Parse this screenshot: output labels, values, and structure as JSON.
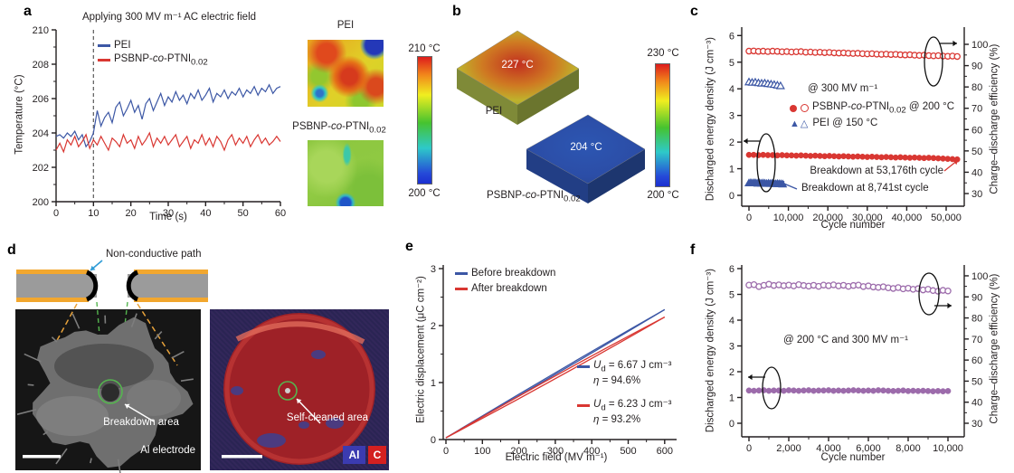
{
  "panel_labels": {
    "a": "a",
    "b": "b",
    "c": "c",
    "d": "d",
    "e": "e",
    "f": "f"
  },
  "colors": {
    "blue": "#3c57a5",
    "red": "#d93732",
    "purple": "#9c6bab",
    "purple_dark": "#7a4f8c",
    "green_annot": "#55b54f",
    "orange_electrode": "#f2a72e",
    "gray_polymer": "#9b9b9b",
    "arrow_blue": "#2e9bd6",
    "axis": "#231f20"
  },
  "panel_a": {
    "title": "Applying 300 MV m⁻¹ AC electric field",
    "xlabel": "Time (s)",
    "ylabel": "Temperature (°C)",
    "legend": [
      {
        "label": "PEI"
      },
      {
        "label_html": "PSBNP-<i>co</i>-PTNI<sub>0.02</sub>"
      }
    ],
    "thermal": {
      "pei_label": "PEI",
      "psbnp_label_html": "PSBNP-<i>co</i>-PTNI<sub>0.02</sub>",
      "colorbar_top": "210 °C",
      "colorbar_bottom": "200 °C"
    }
  },
  "panel_b": {
    "pei_temp": "227 °C",
    "psbnp_temp": "204 °C",
    "pei_label": "PEI",
    "psbnp_label_html": "PSBNP-<i>co</i>-PTNI<sub>0.02</sub>",
    "colorbar_top": "230 °C",
    "colorbar_bottom": "200 °C"
  },
  "panel_c_text": {
    "condition": "@ 300 MV m⁻¹",
    "legend": [
      {
        "label_html": "PSBNP-<i>co</i>-PTNI<sub>0.02</sub> @ 200 °C"
      },
      {
        "label": "PEI @ 150 °C"
      }
    ],
    "annotation_red": "Breakdown at 53,176th cycle",
    "annotation_blue": "Breakdown at 8,741st cycle"
  },
  "panel_d": {
    "non_conductive": "Non-conductive path",
    "breakdown": "Breakdown area",
    "al_electrode": "Al electrode",
    "self_cleaned": "Self-cleaned area",
    "badge_al": "Al",
    "badge_c": "C"
  },
  "panel_e_text": {
    "legend": [
      {
        "label": "Before breakdown"
      },
      {
        "label": "After breakdown"
      }
    ],
    "ud_before_html": "<i>U</i><sub>d</sub> = 6.67 J cm⁻³",
    "eta_before_html": "<i>η</i> = 94.6%",
    "ud_after_html": "<i>U</i><sub>d</sub> = 6.23 J cm⁻³",
    "eta_after_html": "<i>η</i> = 93.2%"
  },
  "panel_f_text": {
    "condition": "@ 200 °C and 300 MV m⁻¹"
  },
  "chart_data": [
    {
      "panel": "a",
      "type": "line",
      "title": "Applying 300 MV m⁻¹ AC electric field",
      "xlabel": "Time (s)",
      "ylabel": "Temperature (°C)",
      "xlim": [
        0,
        60
      ],
      "ylim": [
        200,
        210
      ],
      "xticks": [
        [
          0,
          "0"
        ],
        [
          10,
          "10"
        ],
        [
          20,
          "20"
        ],
        [
          30,
          "30"
        ],
        [
          40,
          "40"
        ],
        [
          50,
          "50"
        ],
        [
          60,
          "60"
        ]
      ],
      "yticks": [
        [
          200,
          "200"
        ],
        [
          202,
          "202"
        ],
        [
          204,
          "204"
        ],
        [
          206,
          "206"
        ],
        [
          208,
          "208"
        ],
        [
          210,
          "210"
        ]
      ],
      "field_on_time_s": 10,
      "series": [
        {
          "name": "PEI",
          "color": "#3c57a5",
          "x_start": 0,
          "x_step": 1,
          "y": [
            203.8,
            203.9,
            203.7,
            204.0,
            203.8,
            204.1,
            203.6,
            203.9,
            203.2,
            203.5,
            204.0,
            205.3,
            204.4,
            204.9,
            205.2,
            204.6,
            205.5,
            205.8,
            205.0,
            205.4,
            205.9,
            205.2,
            205.6,
            204.8,
            205.7,
            206.0,
            205.3,
            205.8,
            206.3,
            205.6,
            206.1,
            205.8,
            206.4,
            205.9,
            206.2,
            205.7,
            206.3,
            206.0,
            206.5,
            205.9,
            206.2,
            206.6,
            205.8,
            206.3,
            206.1,
            206.5,
            206.0,
            206.4,
            206.2,
            206.6,
            206.1,
            206.5,
            206.3,
            206.7,
            206.2,
            206.6,
            206.4,
            206.8,
            206.3,
            206.6,
            206.7
          ]
        },
        {
          "name": "PSBNP-co-PTNI0.02",
          "color": "#d93732",
          "x_start": 0,
          "x_step": 1,
          "y": [
            203.0,
            203.4,
            202.9,
            203.6,
            203.3,
            203.8,
            203.2,
            203.5,
            203.9,
            203.1,
            203.6,
            203.3,
            203.8,
            203.4,
            203.0,
            203.7,
            203.5,
            203.2,
            203.9,
            203.4,
            203.6,
            203.1,
            203.8,
            203.3,
            203.6,
            204.0,
            203.2,
            203.7,
            203.4,
            203.8,
            203.3,
            203.6,
            203.9,
            203.2,
            203.5,
            203.8,
            203.1,
            203.6,
            203.4,
            203.9,
            203.3,
            203.7,
            203.2,
            203.8,
            203.5,
            203.0,
            203.6,
            203.9,
            203.3,
            203.7,
            203.4,
            203.8,
            203.2,
            203.6,
            203.9,
            203.4,
            203.7,
            203.3,
            203.5,
            203.8,
            203.5
          ]
        }
      ]
    },
    {
      "panel": "c",
      "type": "scatter-dual-axis",
      "xlabel": "Cycle number",
      "ylabel_left": "Discharged energy density (J cm⁻³)",
      "ylabel_right": "Charge–discharge efficiency (%)",
      "xlim": [
        0,
        53000
      ],
      "ylim_left": [
        0,
        6
      ],
      "ylim_right": [
        30,
        100
      ],
      "xticks": [
        [
          0,
          "0"
        ],
        [
          10000,
          "10,000"
        ],
        [
          20000,
          "20,000"
        ],
        [
          30000,
          "30,000"
        ],
        [
          40000,
          "40,000"
        ],
        [
          50000,
          "50,000"
        ]
      ],
      "yticks_left": [
        [
          0,
          "0"
        ],
        [
          1,
          "1"
        ],
        [
          2,
          "2"
        ],
        [
          3,
          "3"
        ],
        [
          4,
          "4"
        ],
        [
          5,
          "5"
        ],
        [
          6,
          "6"
        ]
      ],
      "yticks_right": [
        [
          30,
          "30"
        ],
        [
          40,
          "40"
        ],
        [
          50,
          "50"
        ],
        [
          60,
          "60"
        ],
        [
          70,
          "70"
        ],
        [
          80,
          "80"
        ],
        [
          90,
          "90"
        ],
        [
          100,
          "100"
        ]
      ],
      "breakdown_cycle_psbnp": 53176,
      "breakdown_cycle_pei": 8741,
      "series": [
        {
          "name": "PSBNP-co-PTNI0.02 efficiency @ 200 °C",
          "axis": "right",
          "marker": "circle-open",
          "color": "#d93732",
          "x_start": 0,
          "x_step": 1200,
          "y": [
            96.8,
            96.9,
            96.7,
            96.8,
            96.6,
            96.8,
            96.7,
            96.5,
            96.6,
            96.4,
            96.5,
            96.6,
            96.3,
            96.4,
            96.2,
            96.3,
            96.1,
            96.2,
            96.0,
            95.9,
            96.0,
            95.8,
            95.7,
            95.8,
            95.6,
            95.5,
            95.6,
            95.4,
            95.3,
            95.4,
            95.2,
            95.3,
            95.1,
            95.0,
            95.1,
            94.9,
            94.8,
            94.9,
            94.7,
            94.6,
            94.7,
            94.5,
            94.4,
            94.5,
            94.3
          ]
        },
        {
          "name": "PEI efficiency @ 150 °C",
          "axis": "right",
          "marker": "triangle-open",
          "color": "#3c57a5",
          "x_start": 0,
          "x_step": 800,
          "y": [
            82.3,
            82.1,
            82.2,
            81.9,
            81.7,
            81.8,
            81.5,
            81.3,
            81.1,
            80.8,
            80.5
          ]
        },
        {
          "name": "PSBNP-co-PTNI0.02 energy density @ 200 °C",
          "axis": "left",
          "marker": "circle-filled",
          "color": "#d93732",
          "x_start": 0,
          "x_step": 1200,
          "y": [
            1.52,
            1.52,
            1.51,
            1.52,
            1.51,
            1.51,
            1.5,
            1.51,
            1.5,
            1.5,
            1.49,
            1.5,
            1.49,
            1.48,
            1.49,
            1.48,
            1.47,
            1.48,
            1.47,
            1.46,
            1.47,
            1.46,
            1.45,
            1.46,
            1.45,
            1.44,
            1.45,
            1.44,
            1.43,
            1.44,
            1.43,
            1.42,
            1.43,
            1.42,
            1.41,
            1.42,
            1.41,
            1.4,
            1.41,
            1.4,
            1.39,
            1.38,
            1.37,
            1.36,
            1.35
          ]
        },
        {
          "name": "PEI energy density @ 150 °C",
          "axis": "left",
          "marker": "triangle-filled",
          "color": "#3c57a5",
          "x_start": 0,
          "x_step": 450,
          "y": [
            0.46,
            0.47,
            0.46,
            0.47,
            0.46,
            0.45,
            0.46,
            0.45,
            0.46,
            0.45,
            0.44,
            0.45,
            0.44,
            0.45,
            0.44,
            0.43,
            0.44,
            0.43,
            0.43,
            0.42
          ]
        }
      ]
    },
    {
      "panel": "e",
      "type": "line",
      "xlabel": "Electric field (MV m⁻¹)",
      "ylabel": "Electric displacement (μC cm⁻²)",
      "xlim": [
        0,
        600
      ],
      "ylim": [
        0,
        3
      ],
      "xticks": [
        [
          0,
          "0"
        ],
        [
          100,
          "100"
        ],
        [
          200,
          "200"
        ],
        [
          300,
          "300"
        ],
        [
          400,
          "400"
        ],
        [
          500,
          "500"
        ],
        [
          600,
          "600"
        ]
      ],
      "yticks": [
        [
          0,
          "0"
        ],
        [
          1,
          "1"
        ],
        [
          2,
          "2"
        ],
        [
          3,
          "3"
        ]
      ],
      "series": [
        {
          "name": "Before breakdown",
          "color": "#3c57a5",
          "max_field": 600,
          "max_disp": 2.28,
          "loop_halfwidth": 0.03,
          "ud_J_cm3": 6.67,
          "eta_pct": 94.6
        },
        {
          "name": "After breakdown",
          "color": "#d93732",
          "max_field": 600,
          "max_disp": 2.15,
          "loop_halfwidth": 0.05,
          "ud_J_cm3": 6.23,
          "eta_pct": 93.2
        }
      ]
    },
    {
      "panel": "f",
      "type": "scatter-dual-axis",
      "xlabel": "Cycle number",
      "ylabel_left": "Discharged energy density (J cm⁻³)",
      "ylabel_right": "Charge–discharge efficiency (%)",
      "xlim": [
        0,
        10000
      ],
      "ylim_left": [
        0,
        6
      ],
      "ylim_right": [
        30,
        100
      ],
      "xticks": [
        [
          0,
          "0"
        ],
        [
          2000,
          "2,000"
        ],
        [
          4000,
          "4,000"
        ],
        [
          6000,
          "6,000"
        ],
        [
          8000,
          "8,000"
        ],
        [
          10000,
          "10,000"
        ]
      ],
      "yticks_left": [
        [
          0,
          "0"
        ],
        [
          1,
          "1"
        ],
        [
          2,
          "2"
        ],
        [
          3,
          "3"
        ],
        [
          4,
          "4"
        ],
        [
          5,
          "5"
        ],
        [
          6,
          "6"
        ]
      ],
      "yticks_right": [
        [
          30,
          "30"
        ],
        [
          40,
          "40"
        ],
        [
          50,
          "50"
        ],
        [
          60,
          "60"
        ],
        [
          70,
          "70"
        ],
        [
          80,
          "80"
        ],
        [
          90,
          "90"
        ],
        [
          100,
          "100"
        ]
      ],
      "series": [
        {
          "name": "Efficiency @ 200 °C, 300 MV m⁻¹",
          "axis": "right",
          "marker": "circle-open",
          "color": "#9c6bab",
          "x_start": 0,
          "x_step": 250,
          "y": [
            95.6,
            95.8,
            94.9,
            95.5,
            96.0,
            95.4,
            95.7,
            95.3,
            95.6,
            95.2,
            95.8,
            95.4,
            95.1,
            95.5,
            95.0,
            95.6,
            95.3,
            95.7,
            95.2,
            95.5,
            95.0,
            95.4,
            95.6,
            94.9,
            95.2,
            94.7,
            94.5,
            94.8,
            94.3,
            94.0,
            94.4,
            93.8,
            94.1,
            93.6,
            93.9,
            93.3,
            93.6,
            93.0,
            92.7,
            93.1,
            92.8
          ]
        },
        {
          "name": "Discharged energy density @ 200 °C, 300 MV m⁻¹",
          "axis": "left",
          "marker": "circle-filled",
          "color": "#9c6bab",
          "x_start": 0,
          "x_step": 250,
          "y": [
            1.27,
            1.26,
            1.27,
            1.28,
            1.26,
            1.27,
            1.27,
            1.26,
            1.28,
            1.27,
            1.26,
            1.27,
            1.28,
            1.26,
            1.27,
            1.27,
            1.28,
            1.26,
            1.27,
            1.26,
            1.27,
            1.28,
            1.27,
            1.26,
            1.27,
            1.26,
            1.28,
            1.27,
            1.26,
            1.25,
            1.26,
            1.27,
            1.25,
            1.26,
            1.25,
            1.26,
            1.25,
            1.24,
            1.25,
            1.24,
            1.25
          ]
        }
      ]
    }
  ]
}
